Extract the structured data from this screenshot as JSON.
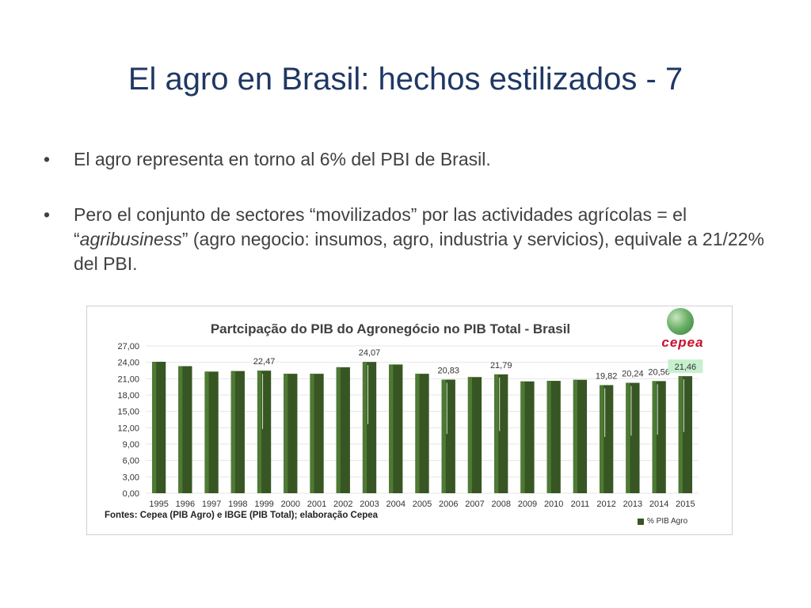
{
  "slide": {
    "title": "El agro en Brasil: hechos estilizados - 7",
    "bullet_symbol": "•",
    "bullets": [
      {
        "text": "El agro representa en torno al 6% del PBI de Brasil."
      },
      {
        "before": "Pero el conjunto de sectores “movilizados” por las actividades agrícolas = el “",
        "emphasis": "agribusiness",
        "after": "” (agro negocio: insumos, agro, industria y servicios), equivale a 21/22% del PBI."
      }
    ]
  },
  "logo": {
    "text": "cepea"
  },
  "chart_data": {
    "type": "bar",
    "title": "Partcipação do PIB do Agronegócio no PIB Total - Brasil",
    "categories": [
      "1995",
      "1996",
      "1997",
      "1998",
      "1999",
      "2000",
      "2001",
      "2002",
      "2003",
      "2004",
      "2005",
      "2006",
      "2007",
      "2008",
      "2009",
      "2010",
      "2011",
      "2012",
      "2013",
      "2014",
      "2015"
    ],
    "series": [
      {
        "name": "% PIB Agro",
        "color": "#375623",
        "values": [
          24.1,
          23.3,
          22.3,
          22.4,
          22.47,
          21.9,
          21.9,
          23.1,
          24.07,
          23.6,
          21.9,
          20.83,
          21.3,
          21.79,
          20.5,
          20.6,
          20.8,
          19.82,
          20.24,
          20.56,
          21.46
        ]
      }
    ],
    "data_labels": [
      {
        "category": "1999",
        "text": "22,47"
      },
      {
        "category": "2003",
        "text": "24,07"
      },
      {
        "category": "2006",
        "text": "20,83"
      },
      {
        "category": "2008",
        "text": "21,79"
      },
      {
        "category": "2012",
        "text": "19,82"
      },
      {
        "category": "2013",
        "text": "20,24"
      },
      {
        "category": "2014",
        "text": "20,56"
      },
      {
        "category": "2015",
        "text": "21,46",
        "highlight": true
      }
    ],
    "ylim": [
      0,
      27
    ],
    "yticks": [
      "0,00",
      "3,00",
      "6,00",
      "9,00",
      "12,00",
      "15,00",
      "18,00",
      "21,00",
      "24,00",
      "27,00"
    ],
    "grid": true,
    "legend_position": "bottom-right",
    "source_note": "Fontes: Cepea (PIB Agro) e IBGE (PIB Total); elaboração Cepea"
  }
}
